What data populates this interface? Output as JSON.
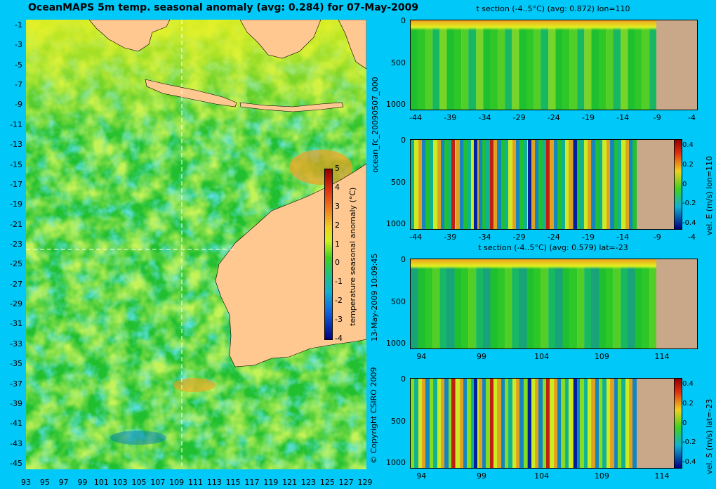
{
  "map": {
    "title": "OceanMAPS 5m temp. seasonal anomaly (avg: 0.284) for 07-May-2009",
    "lat_ticks": [
      "-1",
      "-3",
      "-5",
      "-7",
      "-9",
      "-11",
      "-13",
      "-15",
      "-17",
      "-19",
      "-21",
      "-23",
      "-25",
      "-27",
      "-29",
      "-31",
      "-33",
      "-35",
      "-37",
      "-39",
      "-41",
      "-43",
      "-45"
    ],
    "lon_ticks": [
      "93",
      "95",
      "97",
      "99",
      "101",
      "103",
      "105",
      "107",
      "109",
      "111",
      "113",
      "115",
      "117",
      "119",
      "121",
      "123",
      "125",
      "127",
      "129"
    ],
    "colorbar": {
      "label": "temperature seasonal anomaly (°C)",
      "ticks": [
        "5",
        "4",
        "3",
        "2",
        "1",
        "0",
        "-1",
        "-2",
        "-3",
        "-4"
      ]
    },
    "colors": {
      "ocean_green": "#22c030",
      "land": "#ffc890",
      "background": "#00c8f8"
    }
  },
  "side_text": {
    "run_id": "ocean_fc_20090507_000",
    "timestamp": "13-May-2009 10:09:45",
    "copyright": "© Copyright CSIRO 2009"
  },
  "panels": [
    {
      "title": "t section (-4..5°C) (avg: 0.872) lon=110",
      "y_ticks": [
        "0",
        "500",
        "1000"
      ],
      "x_ticks": [
        "-44",
        "-39",
        "-34",
        "-29",
        "-24",
        "-19",
        "-14",
        "-9",
        "-4"
      ]
    },
    {
      "title": "",
      "y_ticks": [
        "0",
        "500",
        "1000"
      ],
      "x_ticks": [
        "-44",
        "-39",
        "-34",
        "-29",
        "-24",
        "-19",
        "-14",
        "-9",
        "-4"
      ],
      "colorbar": {
        "label": "vel. E (m/s) lon=110",
        "ticks": [
          "0.4",
          "0.2",
          "0",
          "-0.2",
          "-0.4"
        ]
      }
    },
    {
      "title": "t section (-4..5°C) (avg: 0.579) lat=-23",
      "y_ticks": [
        "0",
        "500",
        "1000"
      ],
      "x_ticks": [
        "94",
        "99",
        "104",
        "109",
        "114"
      ]
    },
    {
      "title": "",
      "y_ticks": [
        "0",
        "500",
        "1000"
      ],
      "x_ticks": [
        "94",
        "99",
        "104",
        "109",
        "114"
      ],
      "colorbar": {
        "label": "vel. S (m/s) lat=-23",
        "ticks": [
          "0.4",
          "0.2",
          "0",
          "-0.2",
          "-0.4"
        ]
      }
    }
  ]
}
